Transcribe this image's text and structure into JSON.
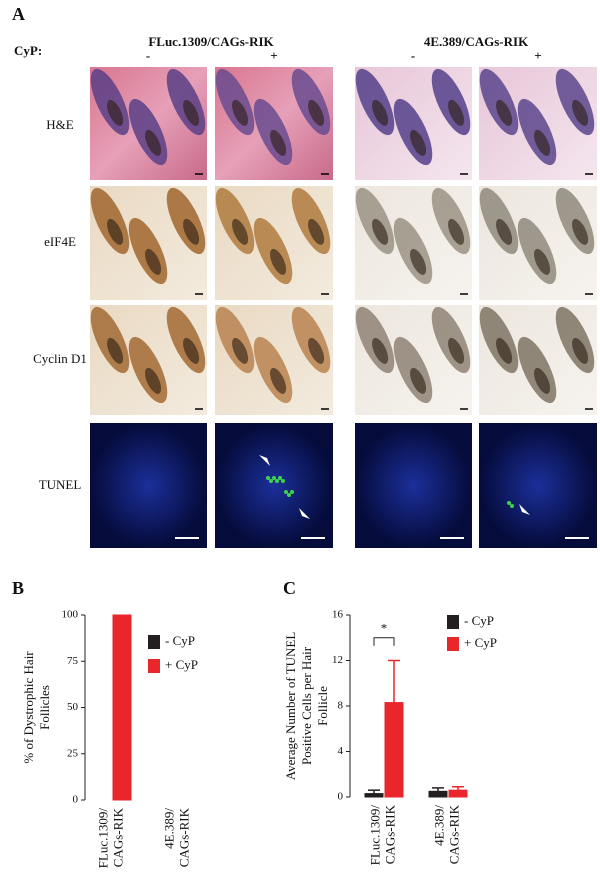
{
  "figure": {
    "panel_label": "A",
    "cyp_label": "CyP:",
    "groups": [
      {
        "title": "FLuc.1309/CAGs-RIK",
        "signs": [
          "-",
          "+"
        ]
      },
      {
        "title": "4E.389/CAGs-RIK",
        "signs": [
          "-",
          "+"
        ]
      }
    ],
    "rows": [
      "H&E",
      "eIF4E",
      "Cyclin D1",
      "TUNEL"
    ]
  },
  "chart_data": [
    {
      "type": "bar",
      "panel_label": "B",
      "ylabel": "% of Dystrophic Hair Follicles",
      "categories": [
        "FLuc.1309/ CAGs-RIK",
        "4E.389/ CAGs-RIK"
      ],
      "series": [
        {
          "name": "- CyP",
          "color": "#231f20",
          "values": [
            0,
            0
          ]
        },
        {
          "name": "+ CyP",
          "color": "#e8262b",
          "values": [
            100,
            0
          ]
        }
      ],
      "ylim": [
        0,
        100
      ],
      "yticks": [
        0,
        25,
        50,
        75,
        100
      ]
    },
    {
      "type": "bar",
      "panel_label": "C",
      "ylabel": "Average Number of TUNEL Positive Cells per Hair Follicle",
      "categories": [
        "FLuc.1309/ CAGs-RIK",
        "4E.389/ CAGs-RIK"
      ],
      "series": [
        {
          "name": "- CyP",
          "color": "#231f20",
          "values": [
            0.3,
            0.5
          ],
          "errors": [
            0.3,
            0.3
          ]
        },
        {
          "name": "+ CyP",
          "color": "#e8262b",
          "values": [
            8.3,
            0.6
          ],
          "errors": [
            3.7,
            0.3
          ]
        }
      ],
      "ylim": [
        0,
        16
      ],
      "yticks": [
        0,
        4,
        8,
        12,
        16
      ],
      "annotation": "*"
    }
  ]
}
